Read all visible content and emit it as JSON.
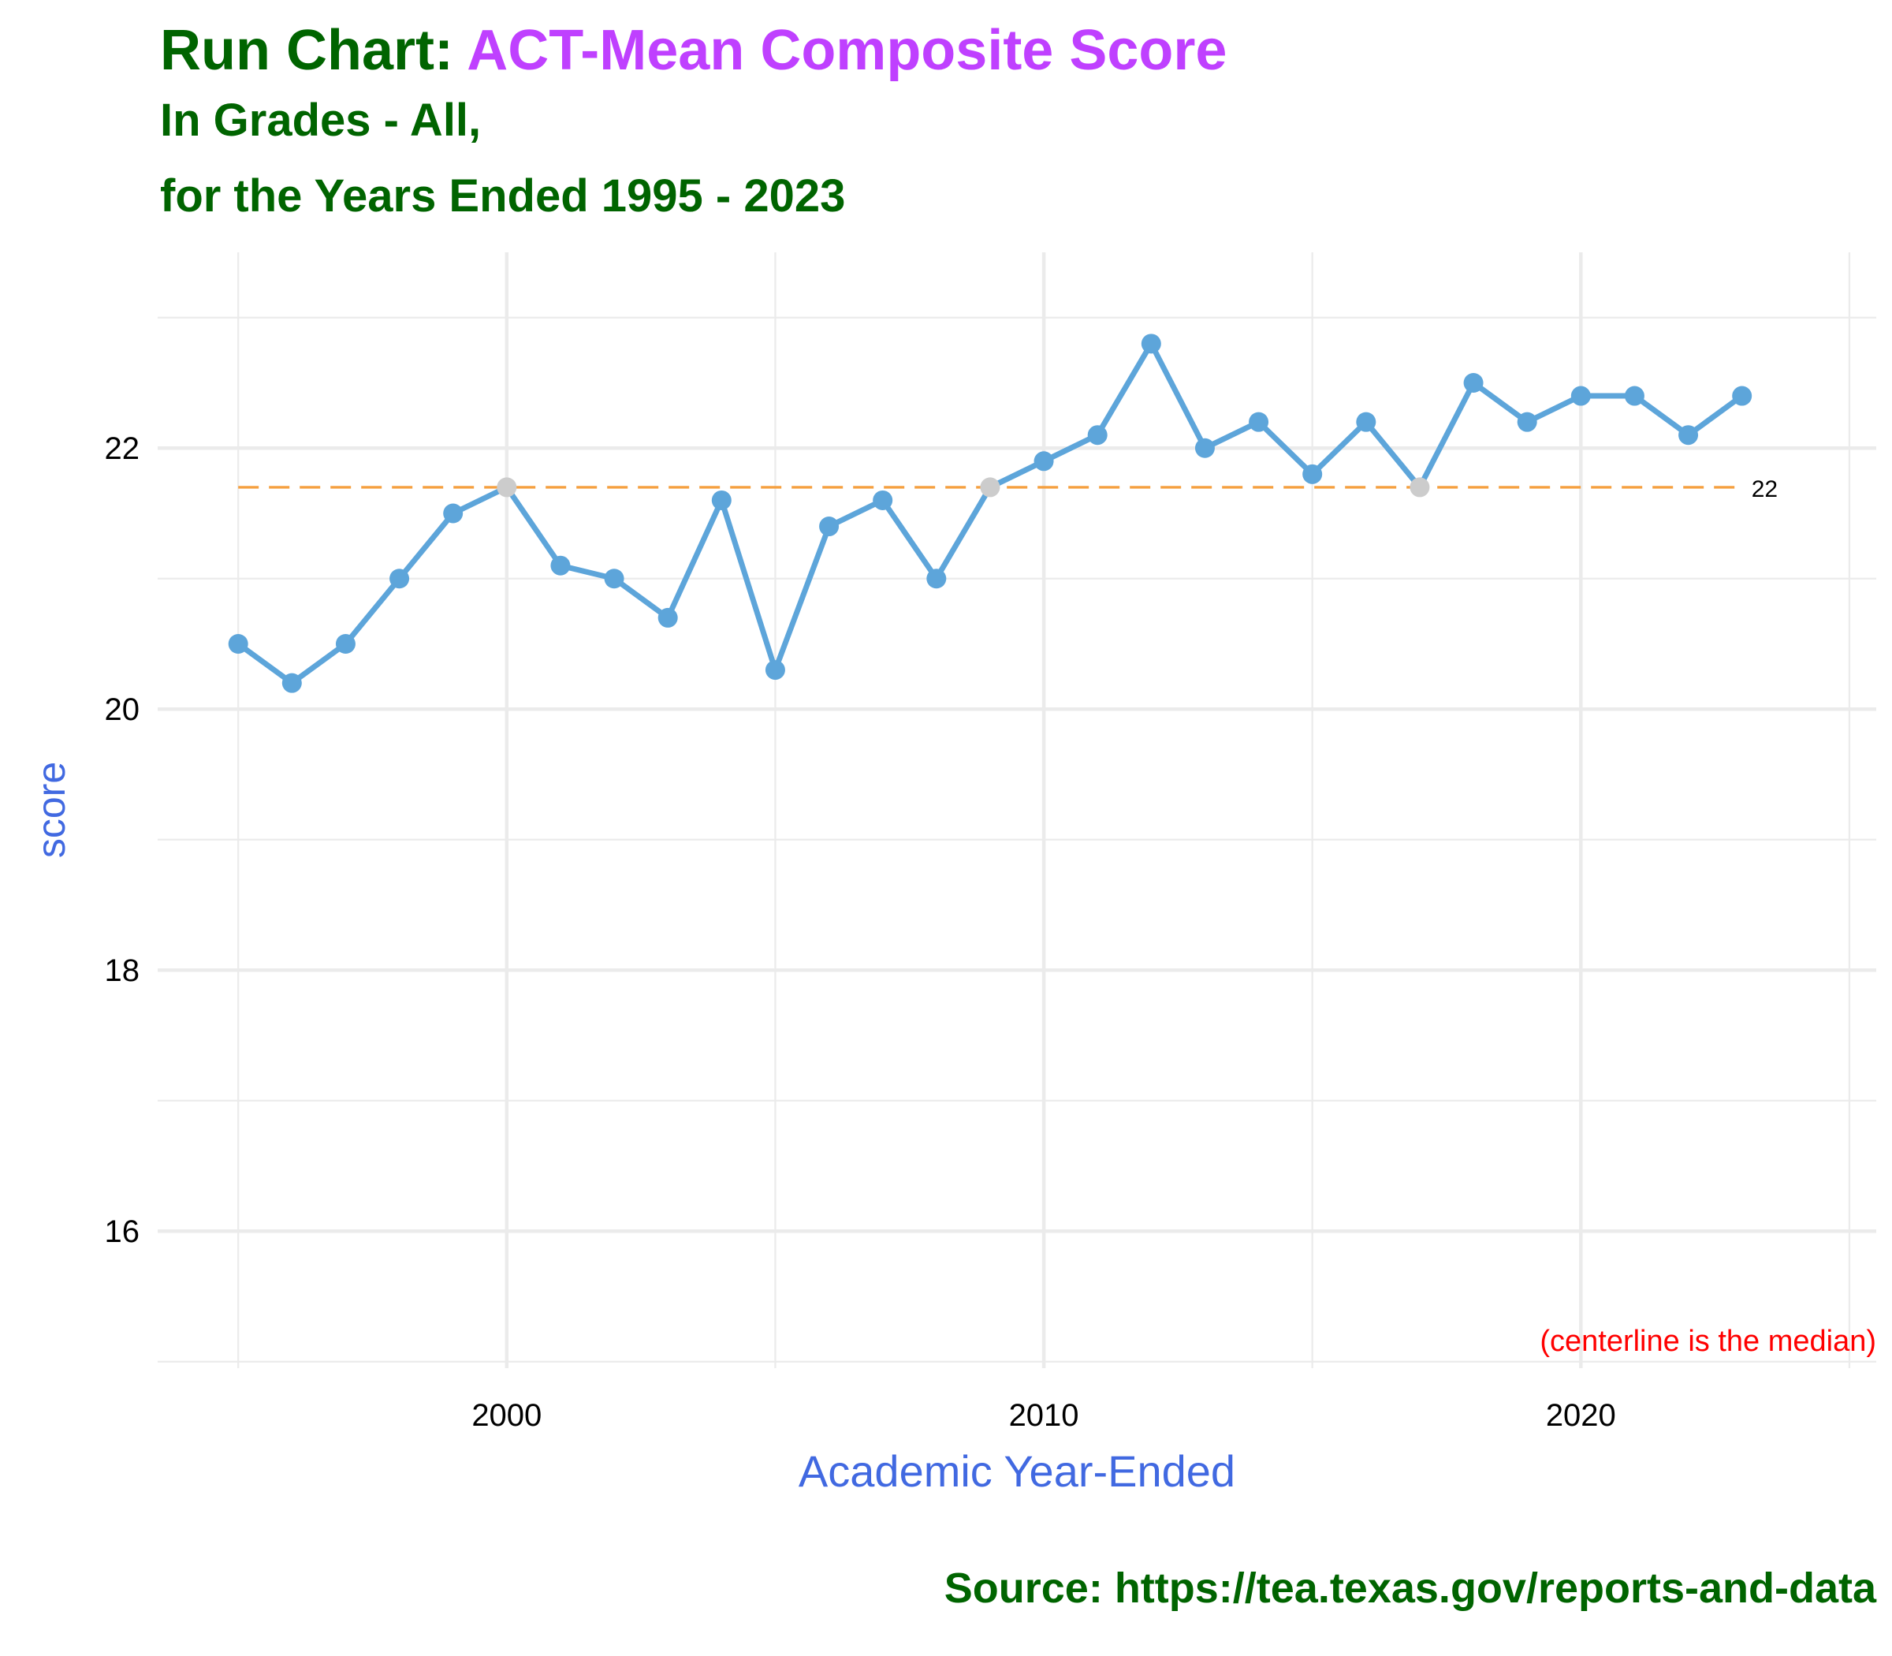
{
  "chart_data": {
    "type": "line",
    "title_prefix": "Run Chart: ",
    "title_metric": "ACT-Mean Composite Score",
    "subtitle_lines": [
      "In Grades - All,",
      "for the Years Ended 1995 - 2023"
    ],
    "xlabel": "Academic Year-Ended",
    "ylabel": "score",
    "caption": "Source:  https://tea.texas.gov/reports-and-data",
    "note": "(centerline is the median)",
    "x": [
      1995,
      1996,
      1997,
      1998,
      1999,
      2000,
      2001,
      2002,
      2003,
      2004,
      2005,
      2006,
      2007,
      2008,
      2009,
      2010,
      2011,
      2012,
      2013,
      2014,
      2015,
      2016,
      2017,
      2018,
      2019,
      2020,
      2021,
      2022,
      2023
    ],
    "series": [
      {
        "values": [
          20.5,
          20.2,
          20.5,
          21.0,
          21.5,
          21.7,
          21.1,
          21.0,
          20.7,
          21.6,
          20.3,
          21.4,
          21.6,
          21.0,
          21.7,
          21.9,
          22.1,
          22.8,
          22.0,
          22.2,
          21.8,
          22.2,
          21.7,
          22.5,
          22.2,
          22.4,
          22.4,
          22.1,
          22.4
        ]
      }
    ],
    "centerline": {
      "value": 21.7,
      "label": "22"
    },
    "xlim": [
      1993.5,
      2025.5
    ],
    "ylim": [
      14.95,
      23.5
    ],
    "x_ticks": [
      2000,
      2010,
      2020
    ],
    "x_minor_ticks": [
      1995,
      2005,
      2015,
      2025
    ],
    "y_ticks": [
      16,
      18,
      20,
      22
    ],
    "y_minor_ticks": [
      15,
      17,
      19,
      21,
      23
    ],
    "grid": true,
    "colors": {
      "line": "#5DA5DA",
      "point": "#5DA5DA",
      "point_on_centerline": "#CCCCCC",
      "centerline": "#F5A040",
      "grid": "#EBEBEB",
      "title_prefix": "#006400",
      "title_metric": "#BF40FF",
      "axis_title": "#4169E1",
      "note": "#FF0000"
    }
  }
}
